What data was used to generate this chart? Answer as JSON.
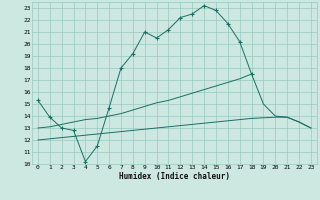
{
  "xlabel": "Humidex (Indice chaleur)",
  "background_color": "#cce8e0",
  "grid_color": "#9cc8c0",
  "line_color": "#1a6e64",
  "ylim": [
    10,
    23.5
  ],
  "xlim": [
    -0.5,
    23.5
  ],
  "line1_x": [
    0,
    1,
    2,
    3,
    4,
    5,
    6,
    7,
    8,
    9,
    10,
    11,
    12,
    13,
    14,
    15,
    16,
    17,
    18
  ],
  "line1_y": [
    15.3,
    13.9,
    13.0,
    12.8,
    10.2,
    11.5,
    14.7,
    18.0,
    19.2,
    21.0,
    20.5,
    21.2,
    22.2,
    22.5,
    23.2,
    22.8,
    21.7,
    20.2,
    17.5
  ],
  "line2_x": [
    0,
    1,
    2,
    3,
    4,
    5,
    6,
    7,
    8,
    9,
    10,
    11,
    12,
    13,
    14,
    15,
    16,
    17,
    18,
    19,
    20,
    21,
    22,
    23
  ],
  "line2_y": [
    13.0,
    13.1,
    13.3,
    13.5,
    13.7,
    13.8,
    14.0,
    14.2,
    14.5,
    14.8,
    15.1,
    15.3,
    15.6,
    15.9,
    16.2,
    16.5,
    16.8,
    17.1,
    17.5,
    15.0,
    14.0,
    13.9,
    13.5,
    13.0
  ],
  "line3_x": [
    0,
    1,
    2,
    3,
    4,
    5,
    6,
    7,
    8,
    9,
    10,
    11,
    12,
    13,
    14,
    15,
    16,
    17,
    18,
    19,
    20,
    21,
    22,
    23
  ],
  "line3_y": [
    12.0,
    12.1,
    12.2,
    12.3,
    12.4,
    12.5,
    12.6,
    12.7,
    12.8,
    12.9,
    13.0,
    13.1,
    13.2,
    13.3,
    13.4,
    13.5,
    13.6,
    13.7,
    13.8,
    13.85,
    13.9,
    13.9,
    13.5,
    13.0
  ]
}
